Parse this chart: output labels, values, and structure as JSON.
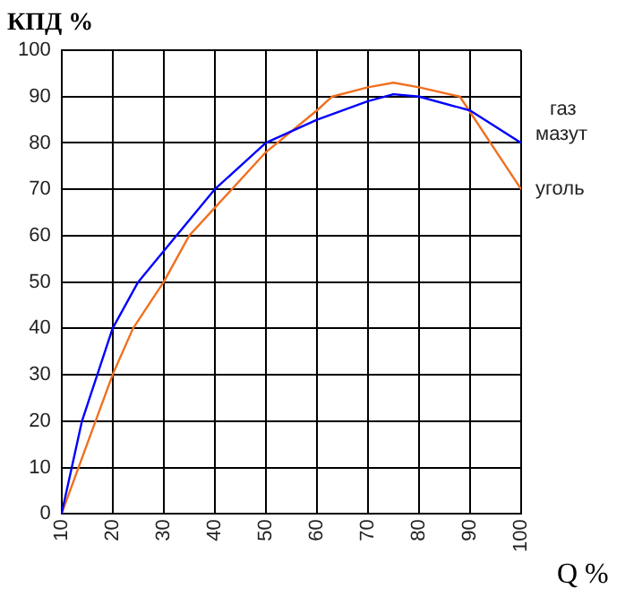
{
  "chart_data": {
    "type": "line",
    "title": "КПД %",
    "xlabel": "Q %",
    "xlim": [
      10,
      100
    ],
    "xticks": [
      10,
      20,
      30,
      40,
      50,
      60,
      70,
      80,
      90,
      100
    ],
    "ylim": [
      0,
      100
    ],
    "yticks": [
      0,
      10,
      20,
      30,
      40,
      50,
      60,
      70,
      80,
      90,
      100
    ],
    "grid": true,
    "marker": "none",
    "line_style": "solid",
    "legend": false,
    "series": [
      {
        "name": "газ мазут",
        "color": "#0000ff",
        "x": [
          10,
          14,
          20,
          25,
          31,
          40,
          50,
          60,
          70,
          75,
          80,
          90,
          100
        ],
        "values": [
          0,
          20,
          40,
          50,
          58,
          70,
          80,
          85,
          89,
          90.5,
          90,
          87,
          80
        ]
      },
      {
        "name": "уголь",
        "color": "#f07020",
        "x": [
          10,
          15,
          20,
          24,
          30,
          35,
          40,
          50,
          60,
          63,
          70,
          75,
          80,
          88,
          100
        ],
        "values": [
          0,
          15,
          30,
          40,
          50,
          60,
          66,
          78,
          87,
          90,
          92,
          93,
          92,
          90,
          70
        ]
      }
    ]
  }
}
